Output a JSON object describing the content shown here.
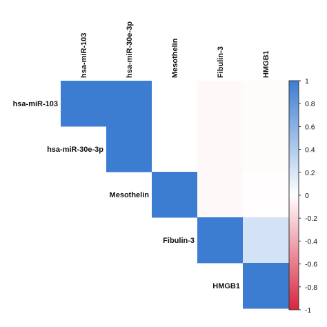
{
  "chart_data": {
    "type": "heatmap",
    "variables": [
      "hsa-miR-103",
      "hsa-miR-30e-3p",
      "Mesothelin",
      "Fibulin-3",
      "HMGB1"
    ],
    "matrix": [
      [
        1.0,
        1.0,
        0.0,
        -0.03,
        -0.02
      ],
      [
        1.0,
        1.0,
        0.0,
        -0.03,
        -0.02
      ],
      [
        0.0,
        0.0,
        1.0,
        -0.03,
        -0.01
      ],
      [
        -0.03,
        -0.03,
        -0.03,
        1.0,
        0.22
      ],
      [
        -0.02,
        -0.02,
        -0.01,
        0.22,
        1.0
      ]
    ],
    "triangle": "upper",
    "colorbar": {
      "range": [
        -1,
        1
      ],
      "ticks": [
        "1",
        "0.8",
        "0.6",
        "0.4",
        "0.2",
        "0",
        "-0.2",
        "-0.4",
        "-0.6",
        "-0.8",
        "-1"
      ],
      "tick_values": [
        1,
        0.8,
        0.6,
        0.4,
        0.2,
        0,
        -0.2,
        -0.4,
        -0.6,
        -0.8,
        -1
      ],
      "colors": {
        "high": "#3c7dd2",
        "mid": "#ffffff",
        "low": "#d7263d"
      },
      "position": "right"
    }
  }
}
